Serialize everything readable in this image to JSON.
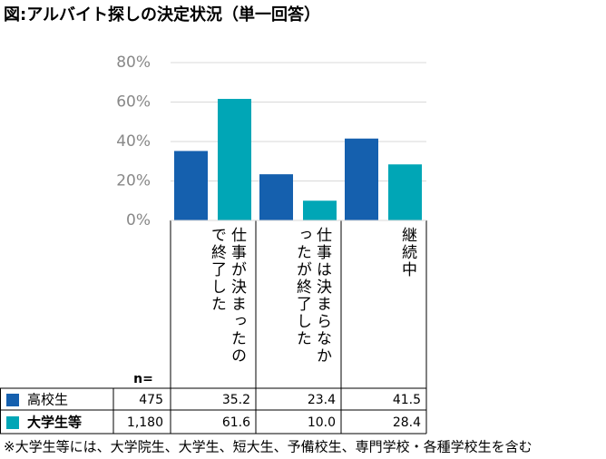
{
  "chart_data": {
    "type": "bar",
    "title": "図:アルバイト探しの決定状況（単一回答）",
    "categories": [
      "仕事が決まったので終了した",
      "仕事は決まらなかったが終了した",
      "継続中"
    ],
    "n_header": "n=",
    "series": [
      {
        "name": "高校生",
        "color": "#1560ae",
        "n": "475",
        "values": [
          35.2,
          23.4,
          41.5
        ],
        "value_labels": [
          "35.2",
          "23.4",
          "41.5"
        ]
      },
      {
        "name": "大学生等",
        "color": "#00a6b6",
        "n": "1,180",
        "values": [
          61.6,
          10.0,
          28.4
        ],
        "value_labels": [
          "61.6",
          "10.0",
          "28.4"
        ]
      }
    ],
    "ylim": [
      0,
      80
    ],
    "yticks": [
      {
        "value": 0,
        "label": "0%"
      },
      {
        "value": 20,
        "label": "20%"
      },
      {
        "value": 40,
        "label": "40%"
      },
      {
        "value": 60,
        "label": "60%"
      },
      {
        "value": 80,
        "label": "80%"
      }
    ],
    "grid": true,
    "footnote": "※大学生等には、大学院生、大学生、短大生、予備校生、専門学校・各種学校生を含む"
  }
}
